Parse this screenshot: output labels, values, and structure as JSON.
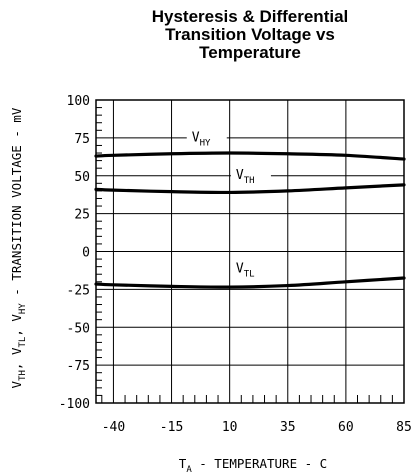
{
  "chart_data": {
    "type": "line",
    "title_lines": [
      "Hysteresis & Differential",
      "Transition Voltage vs",
      "Temperature"
    ],
    "xlabel": {
      "main": "T",
      "sub": "A",
      "rest": " - TEMPERATURE - C"
    },
    "ylabel": {
      "parts": [
        {
          "t": "V",
          "sub": false
        },
        {
          "t": "TH",
          "sub": true
        },
        {
          "t": ", V",
          "sub": false
        },
        {
          "t": "TL",
          "sub": true
        },
        {
          "t": ", V",
          "sub": false
        },
        {
          "t": "HY",
          "sub": true
        },
        {
          "t": " - TRANSITION VOLTAGE - mV",
          "sub": false
        }
      ]
    },
    "xlim": [
      -47.5,
      85
    ],
    "ylim": [
      -100,
      100
    ],
    "x_ticks": [
      -40,
      -15,
      10,
      35,
      60,
      85
    ],
    "y_ticks": [
      100,
      75,
      50,
      25,
      0,
      -25,
      -50,
      -75,
      -100
    ],
    "grid": true,
    "series": [
      {
        "name": "V",
        "sub": "HY",
        "x": [
          -47.5,
          -40,
          -15,
          10,
          35,
          60,
          85
        ],
        "y": [
          63,
          63.5,
          64.5,
          65,
          64.5,
          63.5,
          61
        ]
      },
      {
        "name": "V",
        "sub": "TH",
        "x": [
          -47.5,
          -40,
          -15,
          10,
          35,
          60,
          85
        ],
        "y": [
          41,
          40.5,
          39.5,
          39,
          40,
          42,
          44
        ]
      },
      {
        "name": "V",
        "sub": "TL",
        "x": [
          -47.5,
          -40,
          -15,
          10,
          35,
          60,
          85
        ],
        "y": [
          -21.5,
          -22,
          -23,
          -23.5,
          -22.5,
          -20,
          -17.5
        ]
      }
    ]
  }
}
